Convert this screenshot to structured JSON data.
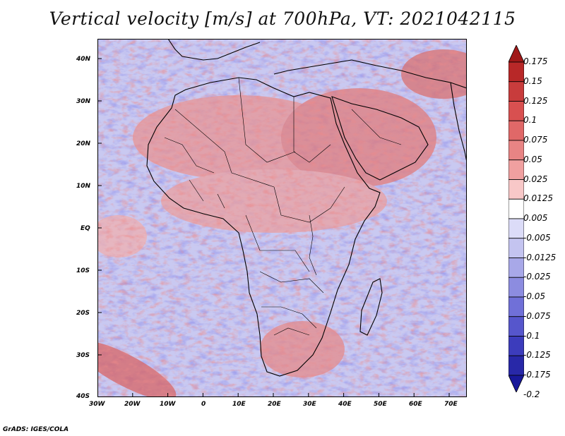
{
  "title": "Vertical velocity [m/s] at 700hPa, VT: 2021042115",
  "footer": "GrADS: IGES/COLA",
  "map": {
    "region": "Africa and Middle East",
    "lon_range": [
      -30,
      75
    ],
    "lat_range": [
      -40,
      45
    ],
    "x_ticks": [
      "30W",
      "20W",
      "10W",
      "0",
      "10E",
      "20E",
      "30E",
      "40E",
      "50E",
      "60E",
      "70E"
    ],
    "y_ticks": [
      "40N",
      "30N",
      "20N",
      "10N",
      "EQ",
      "10S",
      "20S",
      "30S",
      "40S"
    ]
  },
  "colorbar": {
    "labels": [
      "0.175",
      "0.15",
      "0.125",
      "0.1",
      "0.075",
      "0.05",
      "0.025",
      "0.0125",
      "0.005",
      "-0.005",
      "-0.0125",
      "-0.025",
      "-0.05",
      "-0.075",
      "-0.1",
      "-0.125",
      "-0.175",
      "-0.2"
    ],
    "colors": [
      "#a01818",
      "#b82828",
      "#c83c3c",
      "#d85050",
      "#e06868",
      "#e88484",
      "#f0a0a0",
      "#f8c8c8",
      "#ffffff",
      "#dcdcf8",
      "#c4c4f0",
      "#a8a8e8",
      "#8c8ce0",
      "#7070d8",
      "#5656cc",
      "#3c3cbc",
      "#2828a8",
      "#18189a"
    ]
  }
}
